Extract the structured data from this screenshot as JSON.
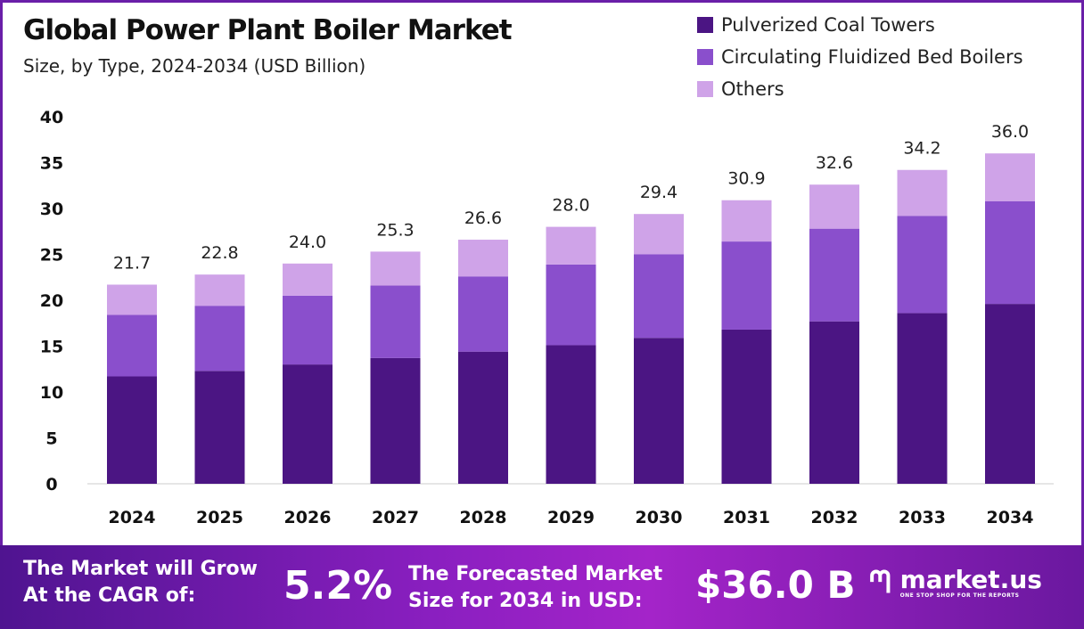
{
  "chart_data": {
    "type": "bar",
    "stacked": true,
    "title": "Global Power Plant Boiler Market",
    "subtitle": "Size, by Type, 2024-2034 (USD Billion)",
    "categories": [
      "2024",
      "2025",
      "2026",
      "2027",
      "2028",
      "2029",
      "2030",
      "2031",
      "2032",
      "2033",
      "2034"
    ],
    "series": [
      {
        "name": "Pulverized Coal Towers",
        "color": "#4b1583",
        "values": [
          11.7,
          12.3,
          13.0,
          13.7,
          14.4,
          15.1,
          15.9,
          16.8,
          17.7,
          18.6,
          19.6
        ]
      },
      {
        "name": "Circulating Fluidized Bed Boilers",
        "color": "#8a4fcc",
        "values": [
          6.7,
          7.1,
          7.5,
          7.9,
          8.2,
          8.8,
          9.1,
          9.6,
          10.1,
          10.6,
          11.2
        ]
      },
      {
        "name": "Others",
        "color": "#cfa3e8",
        "values": [
          3.3,
          3.4,
          3.5,
          3.7,
          4.0,
          4.1,
          4.4,
          4.5,
          4.8,
          5.0,
          5.2
        ]
      }
    ],
    "totals": [
      "21.7",
      "22.8",
      "24.0",
      "25.3",
      "26.6",
      "28.0",
      "29.4",
      "30.9",
      "32.6",
      "34.2",
      "36.0"
    ],
    "yticks": [
      "0",
      "5",
      "10",
      "15",
      "20",
      "25",
      "30",
      "35",
      "40"
    ],
    "ylim": [
      0,
      40
    ],
    "grid": false,
    "legend": "top-right"
  },
  "footer": {
    "cagr_label_line1": "The Market will Grow",
    "cagr_label_line2": "At the CAGR of:",
    "cagr_value": "5.2%",
    "forecast_label_line1": "The Forecasted Market",
    "forecast_label_line2": "Size for 2034 in USD:",
    "forecast_value": "$36.0 B",
    "logo_text": "market.us",
    "logo_tagline": "ONE STOP SHOP FOR THE REPORTS"
  }
}
